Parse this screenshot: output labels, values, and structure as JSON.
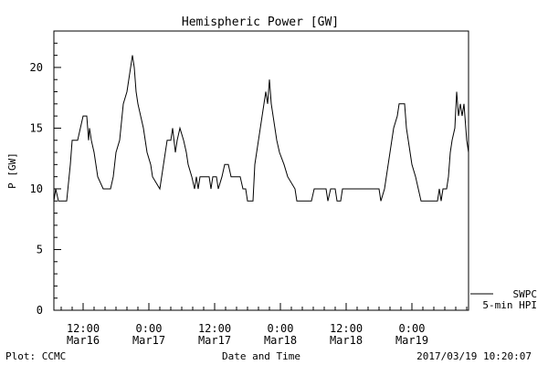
{
  "chart_data": {
    "type": "line",
    "title": "Hemispheric Power [GW]",
    "xlabel": "Date and Time",
    "ylabel": "P [GW]",
    "ylim": [
      0,
      23
    ],
    "yticks": [
      0,
      5,
      10,
      15,
      20
    ],
    "xlim": [
      "2017-03-16 06:40",
      "2017-03-19 10:20"
    ],
    "xticks": [
      {
        "t": "2017-03-16 12:00",
        "time": "12:00",
        "date": "Mar16"
      },
      {
        "t": "2017-03-17 00:00",
        "time": "0:00",
        "date": "Mar17"
      },
      {
        "t": "2017-03-17 12:00",
        "time": "12:00",
        "date": "Mar17"
      },
      {
        "t": "2017-03-18 00:00",
        "time": "0:00",
        "date": "Mar18"
      },
      {
        "t": "2017-03-18 12:00",
        "time": "12:00",
        "date": "Mar18"
      },
      {
        "t": "2017-03-19 00:00",
        "time": "0:00",
        "date": "Mar19"
      }
    ],
    "grid": false,
    "legend_position": "bottom-right",
    "series": [
      {
        "name": "SWPC 5-min HPI",
        "color": "#000000",
        "points": [
          [
            "2017-03-16 06:40",
            9
          ],
          [
            "2017-03-16 07:00",
            10
          ],
          [
            "2017-03-16 07:30",
            9
          ],
          [
            "2017-03-16 09:00",
            9
          ],
          [
            "2017-03-16 09:40",
            12
          ],
          [
            "2017-03-16 10:00",
            14
          ],
          [
            "2017-03-16 11:00",
            14
          ],
          [
            "2017-03-16 11:30",
            15
          ],
          [
            "2017-03-16 12:00",
            16
          ],
          [
            "2017-03-16 12:40",
            16
          ],
          [
            "2017-03-16 13:00",
            14
          ],
          [
            "2017-03-16 13:10",
            15
          ],
          [
            "2017-03-16 13:30",
            14
          ],
          [
            "2017-03-16 14:00",
            13
          ],
          [
            "2017-03-16 14:20",
            12
          ],
          [
            "2017-03-16 14:40",
            11
          ],
          [
            "2017-03-16 15:40",
            10
          ],
          [
            "2017-03-16 17:00",
            10
          ],
          [
            "2017-03-16 17:30",
            11
          ],
          [
            "2017-03-16 18:00",
            13
          ],
          [
            "2017-03-16 18:40",
            14
          ],
          [
            "2017-03-16 19:20",
            17
          ],
          [
            "2017-03-16 20:00",
            18
          ],
          [
            "2017-03-16 20:40",
            20
          ],
          [
            "2017-03-16 21:00",
            21
          ],
          [
            "2017-03-16 21:20",
            20
          ],
          [
            "2017-03-16 21:40",
            18
          ],
          [
            "2017-03-16 22:00",
            17
          ],
          [
            "2017-03-16 23:00",
            15
          ],
          [
            "2017-03-16 23:40",
            13
          ],
          [
            "2017-03-17 00:20",
            12
          ],
          [
            "2017-03-17 00:40",
            11
          ],
          [
            "2017-03-17 02:00",
            10
          ],
          [
            "2017-03-17 02:40",
            12
          ],
          [
            "2017-03-17 03:20",
            14
          ],
          [
            "2017-03-17 04:00",
            14
          ],
          [
            "2017-03-17 04:20",
            15
          ],
          [
            "2017-03-17 04:50",
            13
          ],
          [
            "2017-03-17 05:10",
            14
          ],
          [
            "2017-03-17 05:40",
            15
          ],
          [
            "2017-03-17 06:20",
            14
          ],
          [
            "2017-03-17 06:50",
            13
          ],
          [
            "2017-03-17 07:10",
            12
          ],
          [
            "2017-03-17 07:50",
            11
          ],
          [
            "2017-03-17 08:20",
            10
          ],
          [
            "2017-03-17 08:40",
            11
          ],
          [
            "2017-03-17 09:00",
            10
          ],
          [
            "2017-03-17 09:20",
            11
          ],
          [
            "2017-03-17 11:00",
            11
          ],
          [
            "2017-03-17 11:20",
            10
          ],
          [
            "2017-03-17 11:40",
            11
          ],
          [
            "2017-03-17 12:20",
            11
          ],
          [
            "2017-03-17 12:40",
            10
          ],
          [
            "2017-03-17 13:20",
            11
          ],
          [
            "2017-03-17 13:50",
            12
          ],
          [
            "2017-03-17 14:30",
            12
          ],
          [
            "2017-03-17 15:00",
            11
          ],
          [
            "2017-03-17 16:40",
            11
          ],
          [
            "2017-03-17 17:10",
            10
          ],
          [
            "2017-03-17 17:40",
            10
          ],
          [
            "2017-03-17 18:00",
            9
          ],
          [
            "2017-03-17 19:00",
            9
          ],
          [
            "2017-03-17 19:20",
            12
          ],
          [
            "2017-03-17 19:40",
            13
          ],
          [
            "2017-03-17 20:00",
            14
          ],
          [
            "2017-03-17 20:40",
            16
          ],
          [
            "2017-03-17 21:00",
            17
          ],
          [
            "2017-03-17 21:20",
            18
          ],
          [
            "2017-03-17 21:40",
            17
          ],
          [
            "2017-03-17 22:00",
            19
          ],
          [
            "2017-03-17 22:20",
            17
          ],
          [
            "2017-03-17 22:40",
            16
          ],
          [
            "2017-03-17 23:20",
            14
          ],
          [
            "2017-03-17 23:50",
            13
          ],
          [
            "2017-03-18 00:40",
            12
          ],
          [
            "2017-03-18 01:20",
            11
          ],
          [
            "2017-03-18 02:40",
            10
          ],
          [
            "2017-03-18 03:00",
            9
          ],
          [
            "2017-03-18 05:40",
            9
          ],
          [
            "2017-03-18 06:10",
            10
          ],
          [
            "2017-03-18 08:20",
            10
          ],
          [
            "2017-03-18 08:40",
            9
          ],
          [
            "2017-03-18 09:10",
            10
          ],
          [
            "2017-03-18 10:00",
            10
          ],
          [
            "2017-03-18 10:20",
            9
          ],
          [
            "2017-03-18 11:00",
            9
          ],
          [
            "2017-03-18 11:20",
            10
          ],
          [
            "2017-03-18 18:00",
            10
          ],
          [
            "2017-03-18 18:20",
            9
          ],
          [
            "2017-03-18 19:00",
            10
          ],
          [
            "2017-03-18 19:40",
            12
          ],
          [
            "2017-03-18 20:20",
            14
          ],
          [
            "2017-03-18 20:40",
            15
          ],
          [
            "2017-03-18 21:20",
            16
          ],
          [
            "2017-03-18 21:40",
            17
          ],
          [
            "2017-03-18 22:40",
            17
          ],
          [
            "2017-03-18 23:00",
            15
          ],
          [
            "2017-03-18 23:40",
            13
          ],
          [
            "2017-03-19 00:00",
            12
          ],
          [
            "2017-03-19 00:40",
            11
          ],
          [
            "2017-03-19 01:10",
            10
          ],
          [
            "2017-03-19 01:40",
            9
          ],
          [
            "2017-03-19 04:40",
            9
          ],
          [
            "2017-03-19 05:00",
            10
          ],
          [
            "2017-03-19 05:20",
            9
          ],
          [
            "2017-03-19 05:40",
            10
          ],
          [
            "2017-03-19 06:20",
            10
          ],
          [
            "2017-03-19 06:40",
            11
          ],
          [
            "2017-03-19 07:00",
            13
          ],
          [
            "2017-03-19 07:20",
            14
          ],
          [
            "2017-03-19 07:50",
            15
          ],
          [
            "2017-03-19 08:10",
            18
          ],
          [
            "2017-03-19 08:30",
            16
          ],
          [
            "2017-03-19 08:50",
            17
          ],
          [
            "2017-03-19 09:10",
            16
          ],
          [
            "2017-03-19 09:30",
            17
          ],
          [
            "2017-03-19 10:00",
            14
          ],
          [
            "2017-03-19 10:20",
            13
          ]
        ]
      }
    ],
    "legend": {
      "line1": "SWPC",
      "line2": "5-min HPI"
    }
  },
  "footer": {
    "left": "Plot: CCMC",
    "right": "2017/03/19 10:20:07"
  }
}
